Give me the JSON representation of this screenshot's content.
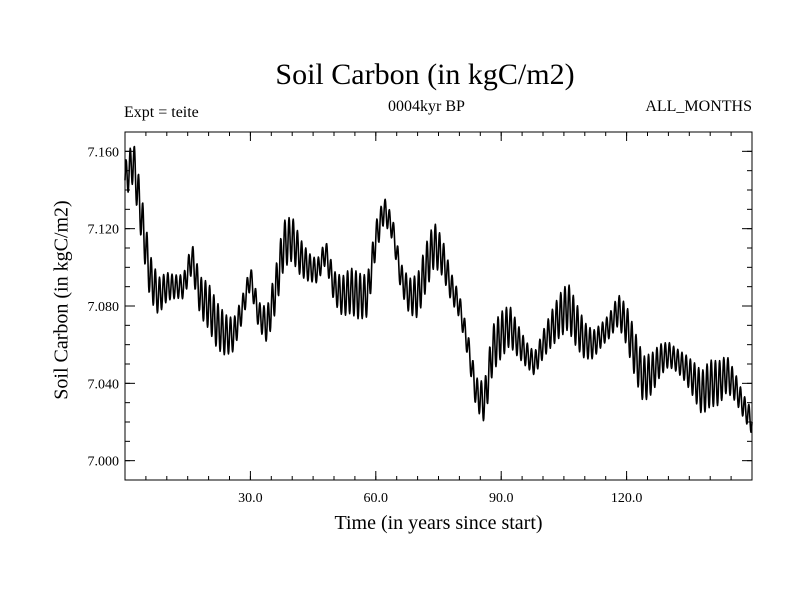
{
  "chart_data": {
    "type": "line",
    "title": "Soil Carbon (in kgC/m2)",
    "subtitle": "0004kyr BP",
    "annotation_left": "Expt = teite",
    "annotation_right": "ALL_MONTHS",
    "xlabel": "Time (in years since start)",
    "ylabel": "Soil Carbon (in kgC/m2)",
    "xlim": [
      0,
      150
    ],
    "ylim": [
      6.99,
      7.17
    ],
    "xticks": [
      30,
      60,
      90,
      120
    ],
    "xtick_labels": [
      "30.0",
      "60.0",
      "90.0",
      "120.0"
    ],
    "yticks": [
      7.0,
      7.04,
      7.08,
      7.12,
      7.16
    ],
    "ytick_labels": [
      "7.000",
      "7.040",
      "7.080",
      "7.120",
      "7.160"
    ],
    "series": [
      {
        "color": "#000000",
        "x": [
          0,
          2,
          4,
          6,
          8,
          10,
          12,
          14,
          16,
          18,
          20,
          22,
          24,
          26,
          28,
          30,
          32,
          34,
          36,
          38,
          40,
          42,
          44,
          46,
          48,
          50,
          52,
          54,
          56,
          58,
          60,
          62,
          64,
          66,
          68,
          70,
          72,
          74,
          76,
          78,
          80,
          82,
          84,
          86,
          88,
          90,
          92,
          94,
          96,
          98,
          100,
          102,
          104,
          106,
          108,
          110,
          112,
          114,
          116,
          118,
          120,
          122,
          124,
          126,
          128,
          130,
          132,
          134,
          136,
          138,
          140,
          142,
          144,
          146,
          148,
          150
        ],
        "values": [
          7.145,
          7.155,
          7.125,
          7.095,
          7.085,
          7.09,
          7.09,
          7.09,
          7.105,
          7.085,
          7.08,
          7.07,
          7.065,
          7.065,
          7.078,
          7.095,
          7.075,
          7.07,
          7.088,
          7.112,
          7.115,
          7.105,
          7.1,
          7.098,
          7.108,
          7.09,
          7.085,
          7.088,
          7.085,
          7.085,
          7.115,
          7.13,
          7.12,
          7.095,
          7.085,
          7.085,
          7.1,
          7.112,
          7.105,
          7.09,
          7.08,
          7.06,
          7.035,
          7.03,
          7.058,
          7.065,
          7.07,
          7.062,
          7.055,
          7.05,
          7.06,
          7.068,
          7.075,
          7.08,
          7.07,
          7.062,
          7.06,
          7.065,
          7.07,
          7.078,
          7.07,
          7.055,
          7.042,
          7.045,
          7.052,
          7.055,
          7.052,
          7.048,
          7.042,
          7.035,
          7.04,
          7.04,
          7.045,
          7.038,
          7.028,
          7.02
        ],
        "oscillation_amplitude": 0.012,
        "oscillation_period_years": 1
      }
    ]
  }
}
